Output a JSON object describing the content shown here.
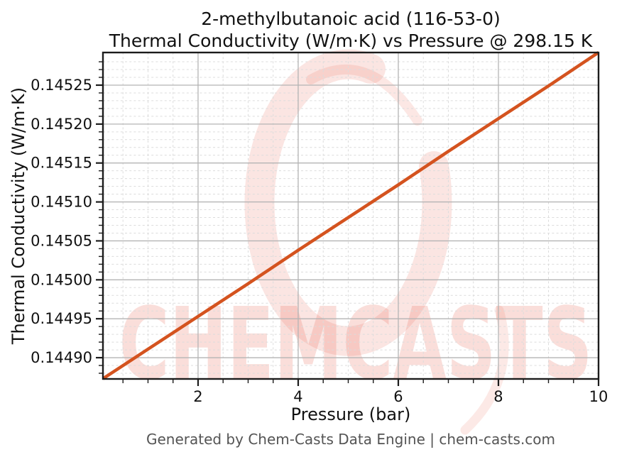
{
  "title": {
    "line1": "2-methylbutanoic acid (116-53-0)",
    "line2": "Thermal Conductivity (W/m·K) vs Pressure @ 298.15 K"
  },
  "footer": "Generated by Chem-Casts Data Engine | chem-casts.com",
  "watermark": {
    "text": "CHEMCASTS",
    "color": "#e8604c"
  },
  "chart_data": {
    "type": "line",
    "title": "2-methylbutanoic acid (116-53-0) Thermal Conductivity (W/m·K) vs Pressure @ 298.15 K",
    "xlabel": "Pressure (bar)",
    "ylabel": "Thermal Conductivity (W/m·K)",
    "xlim": [
      0.1,
      10
    ],
    "ylim": [
      0.1448727,
      0.1452919
    ],
    "x_ticks": {
      "values": [
        2,
        4,
        6,
        8,
        10
      ],
      "labels": [
        "2",
        "4",
        "6",
        "8",
        "10"
      ]
    },
    "y_ticks": {
      "values": [
        0.1449,
        0.14495,
        0.145,
        0.14505,
        0.1451,
        0.14515,
        0.1452,
        0.14525
      ],
      "labels": [
        "0.14490",
        "0.14495",
        "0.14500",
        "0.14505",
        "0.14510",
        "0.14515",
        "0.14520",
        "0.14525"
      ]
    },
    "x_minor_step": 0.5,
    "y_minor_step": 1e-05,
    "grid": true,
    "legend": "none",
    "series": [
      {
        "name": "Thermal Conductivity",
        "color": "#d4531f",
        "x": [
          0.1,
          1,
          2,
          3,
          4,
          5,
          6,
          7,
          8,
          9,
          10
        ],
        "y": [
          0.144873,
          0.144911,
          0.144953,
          0.144995,
          0.145038,
          0.14508,
          0.145122,
          0.145165,
          0.145207,
          0.145249,
          0.145292
        ]
      }
    ]
  }
}
